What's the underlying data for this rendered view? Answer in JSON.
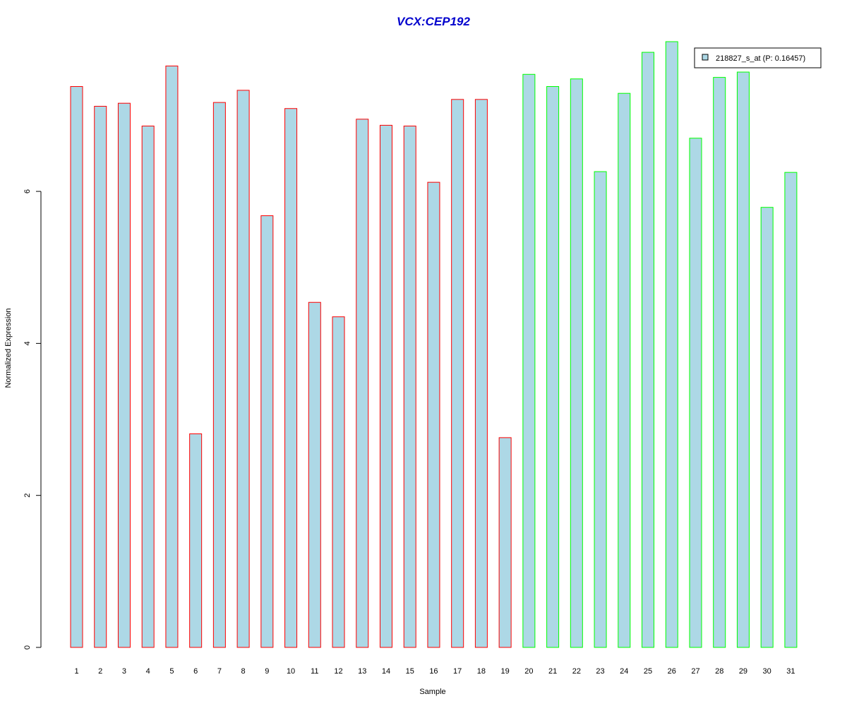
{
  "chart_data": {
    "type": "bar",
    "title": "VCX:CEP192",
    "xlabel": "Sample",
    "ylabel": "Normalized Expression",
    "categories": [
      "1",
      "2",
      "3",
      "4",
      "5",
      "6",
      "7",
      "8",
      "9",
      "10",
      "11",
      "12",
      "13",
      "14",
      "15",
      "16",
      "17",
      "18",
      "19",
      "20",
      "21",
      "22",
      "23",
      "24",
      "25",
      "26",
      "27",
      "28",
      "29",
      "30",
      "31"
    ],
    "values": [
      7.38,
      7.12,
      7.16,
      6.86,
      7.65,
      2.81,
      7.17,
      7.33,
      5.68,
      7.09,
      4.54,
      4.35,
      6.95,
      6.87,
      6.86,
      6.12,
      7.21,
      7.21,
      2.76,
      7.54,
      7.38,
      7.48,
      6.26,
      7.29,
      7.83,
      7.97,
      6.7,
      7.5,
      7.57,
      5.79,
      6.25
    ],
    "group_border_colors": [
      "#ff0000",
      "#ff0000",
      "#ff0000",
      "#ff0000",
      "#ff0000",
      "#ff0000",
      "#ff0000",
      "#ff0000",
      "#ff0000",
      "#ff0000",
      "#ff0000",
      "#ff0000",
      "#ff0000",
      "#ff0000",
      "#ff0000",
      "#ff0000",
      "#ff0000",
      "#ff0000",
      "#ff0000",
      "#00ff00",
      "#00ff00",
      "#00ff00",
      "#00ff00",
      "#00ff00",
      "#00ff00",
      "#00ff00",
      "#00ff00",
      "#00ff00",
      "#00ff00",
      "#00ff00",
      "#00ff00"
    ],
    "bar_fill": "#add8e6",
    "title_color": "#0000cd",
    "yticks": [
      "0",
      "2",
      "4",
      "6"
    ],
    "ytick_values": [
      0,
      2,
      4,
      6
    ],
    "ylim": [
      0,
      7.97
    ],
    "grid": false,
    "legend": {
      "placement": "top-right",
      "label": "218827_s_at (P: 0.16457)"
    }
  }
}
